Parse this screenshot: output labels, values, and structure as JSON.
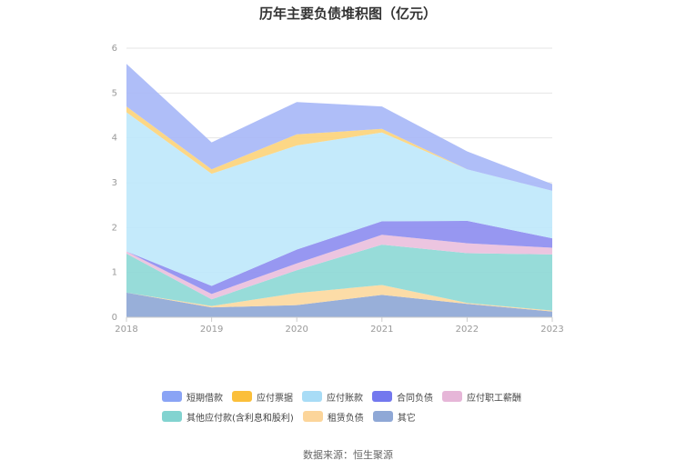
{
  "chart_data": {
    "type": "area",
    "stacked": true,
    "title": "历年主要负债堆积图（亿元）",
    "categories": [
      "2018",
      "2019",
      "2020",
      "2021",
      "2022",
      "2023"
    ],
    "ylim": [
      0,
      6
    ],
    "yticks": [
      "0",
      "1",
      "2",
      "3",
      "4",
      "5",
      "6"
    ],
    "grid": true,
    "legend_position": "bottom",
    "series": [
      {
        "name": "其它",
        "color": "#8fa8d6",
        "values": [
          0.55,
          0.22,
          0.27,
          0.5,
          0.3,
          0.13
        ]
      },
      {
        "name": "租赁负债",
        "color": "#fcd9a0",
        "values": [
          0.0,
          0.03,
          0.27,
          0.22,
          0.02,
          0.02
        ]
      },
      {
        "name": "其他应付款(含利息和股利)",
        "color": "#8ed9d6",
        "values": [
          0.87,
          0.15,
          0.51,
          0.9,
          1.11,
          1.25
        ]
      },
      {
        "name": "应付职工薪酬",
        "color": "#eac0dd",
        "values": [
          0.05,
          0.12,
          0.15,
          0.22,
          0.22,
          0.15
        ]
      },
      {
        "name": "合同负债",
        "color": "#8e8ef0",
        "values": [
          0.0,
          0.18,
          0.31,
          0.3,
          0.5,
          0.21
        ]
      },
      {
        "name": "应付账款",
        "color": "#bfe8fb",
        "values": [
          3.1,
          2.5,
          2.32,
          1.98,
          1.15,
          1.06
        ]
      },
      {
        "name": "应付票据",
        "color": "#fcd47c",
        "values": [
          0.13,
          0.1,
          0.25,
          0.08,
          0.0,
          0.0
        ]
      },
      {
        "name": "短期借款",
        "color": "#a8b9f7",
        "values": [
          0.95,
          0.6,
          0.72,
          0.5,
          0.4,
          0.15
        ]
      }
    ]
  },
  "legend": {
    "row1": [
      {
        "label": "短期借款",
        "color": "#8aa4f5"
      },
      {
        "label": "应付票据",
        "color": "#fbbf3a"
      },
      {
        "label": "应付账款",
        "color": "#a8dcf6"
      },
      {
        "label": "合同负债",
        "color": "#7378ee"
      },
      {
        "label": "应付职工薪酬",
        "color": "#e6b6d8"
      }
    ],
    "row2": [
      {
        "label": "其他应付款(含利息和股利)",
        "color": "#82d3d0"
      },
      {
        "label": "租赁负债",
        "color": "#fcd59a"
      },
      {
        "label": "其它",
        "color": "#8fa8d6"
      }
    ]
  },
  "source": "数据来源：恒生聚源"
}
